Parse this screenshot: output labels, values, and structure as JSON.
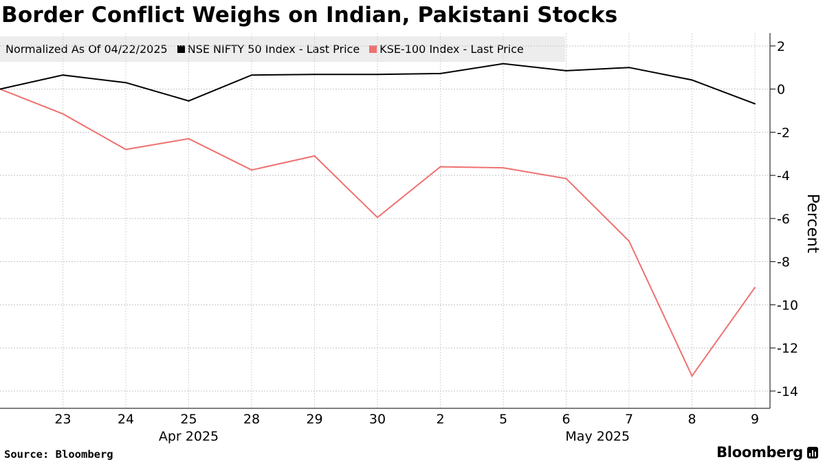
{
  "title": "Border Conflict Weighs on Indian, Pakistani Stocks",
  "legend": {
    "note": "Normalized As Of 04/22/2025",
    "entries": [
      {
        "label": "NSE NIFTY 50 Index - Last Price",
        "color": "#000000"
      },
      {
        "label": "KSE-100 Index - Last Price",
        "color": "#f07070"
      }
    ]
  },
  "source": "Source: Bloomberg",
  "brand": "Bloomberg",
  "chart_data": {
    "type": "line",
    "title": "Border Conflict Weighs on Indian, Pakistani Stocks",
    "xlabel": "",
    "ylabel": "Percent",
    "ylim": [
      -14.8,
      2.6
    ],
    "yticks": [
      2,
      0,
      -2,
      -4,
      -6,
      -8,
      -10,
      -12,
      -14
    ],
    "ytick_labels": [
      "2",
      "0",
      "-2",
      "-4",
      "-6",
      "-8",
      "-10",
      "-12",
      "-14"
    ],
    "grid": true,
    "x_dates": [
      "2025-04-22",
      "2025-04-23",
      "2025-04-24",
      "2025-04-25",
      "2025-04-28",
      "2025-04-29",
      "2025-04-30",
      "2025-05-02",
      "2025-05-05",
      "2025-05-06",
      "2025-05-07",
      "2025-05-08",
      "2025-05-09"
    ],
    "x_tick_labels": [
      "23",
      "24",
      "25",
      "28",
      "29",
      "30",
      "2",
      "5",
      "6",
      "7",
      "8",
      "9"
    ],
    "x_groups": [
      {
        "label": "Apr 2025",
        "from": 1,
        "to": 5
      },
      {
        "label": "May 2025",
        "from": 7,
        "to": 12
      }
    ],
    "series": [
      {
        "name": "NSE NIFTY 50 Index - Last Price",
        "color": "#000000",
        "values": [
          0,
          0.65,
          0.3,
          -0.55,
          0.65,
          0.68,
          0.68,
          0.72,
          1.18,
          0.85,
          1.0,
          0.42,
          -0.68
        ]
      },
      {
        "name": "KSE-100 Index - Last Price",
        "color": "#f07070",
        "values": [
          0,
          -1.15,
          -2.8,
          -2.3,
          -3.75,
          -3.1,
          -5.95,
          -3.6,
          -3.65,
          -4.15,
          -7.05,
          -13.3,
          -9.2
        ]
      }
    ]
  }
}
